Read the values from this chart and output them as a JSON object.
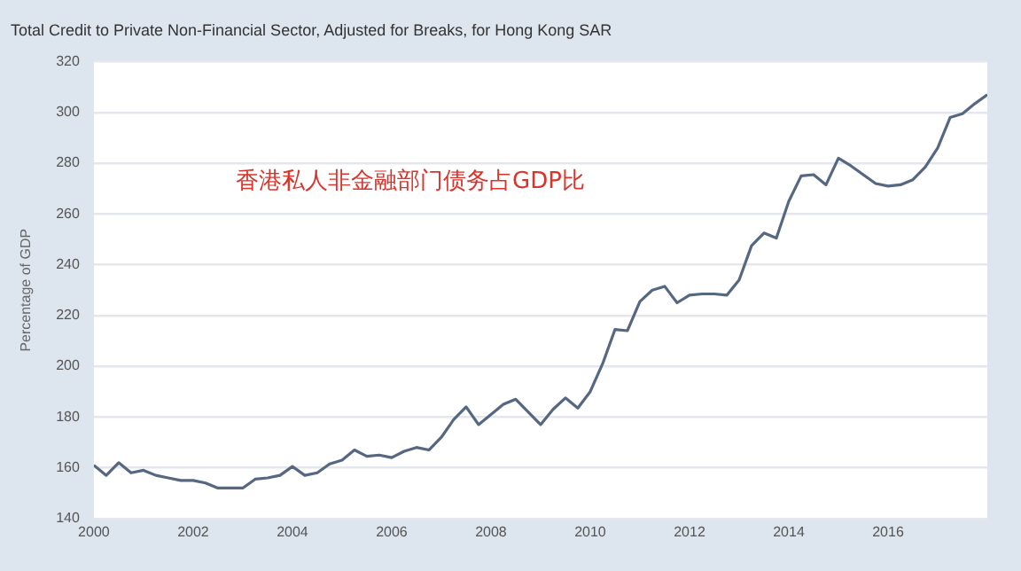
{
  "chart_data": {
    "type": "line",
    "title": "Total Credit to Private Non-Financial Sector, Adjusted for Breaks, for Hong Kong SAR",
    "ylabel": "Percentage of GDP",
    "annotations": [
      "香港私人非金融部门债务占GDP比"
    ],
    "x": [
      "2000-01",
      "2000-04",
      "2000-07",
      "2000-10",
      "2001-01",
      "2001-04",
      "2001-07",
      "2001-10",
      "2002-01",
      "2002-04",
      "2002-07",
      "2002-10",
      "2003-01",
      "2003-04",
      "2003-07",
      "2003-10",
      "2004-01",
      "2004-04",
      "2004-07",
      "2004-10",
      "2005-01",
      "2005-04",
      "2005-07",
      "2005-10",
      "2006-01",
      "2006-04",
      "2006-07",
      "2006-10",
      "2007-01",
      "2007-04",
      "2007-07",
      "2007-10",
      "2008-01",
      "2008-04",
      "2008-07",
      "2008-10",
      "2009-01",
      "2009-04",
      "2009-07",
      "2009-10",
      "2010-01",
      "2010-04",
      "2010-07",
      "2010-10",
      "2011-01",
      "2011-04",
      "2011-07",
      "2011-10",
      "2012-01",
      "2012-04",
      "2012-07",
      "2012-10",
      "2013-01",
      "2013-04",
      "2013-07",
      "2013-10",
      "2014-01",
      "2014-04",
      "2014-07",
      "2014-10",
      "2015-01",
      "2015-04",
      "2015-07",
      "2015-10",
      "2016-01",
      "2016-04",
      "2016-07",
      "2016-10",
      "2017-01",
      "2017-04",
      "2017-07",
      "2017-10",
      "2018-01"
    ],
    "series": [
      {
        "color": "#566781",
        "values": [
          161,
          157,
          162,
          158,
          159,
          157,
          156,
          155,
          155,
          154,
          152,
          152,
          152,
          155.5,
          156,
          157,
          160.5,
          157,
          158,
          161.5,
          163,
          167,
          164.5,
          165,
          164,
          166.5,
          168,
          167,
          172,
          179,
          184,
          177,
          181,
          185,
          187,
          182,
          177,
          183,
          187.5,
          183.5,
          190,
          201,
          214.5,
          214,
          225.5,
          230,
          231.5,
          225,
          228,
          228.5,
          228.5,
          228,
          234,
          247.5,
          252.5,
          250.5,
          265,
          275,
          275.5,
          271.5,
          282,
          279,
          275.5,
          272,
          271,
          271.5,
          273.5,
          278.5,
          286,
          298,
          299.5,
          303.5,
          307
        ]
      }
    ],
    "xlim": [
      "2000",
      "2018"
    ],
    "xticks": [
      "2000",
      "2002",
      "2004",
      "2006",
      "2008",
      "2010",
      "2012",
      "2014",
      "2016"
    ],
    "ylim": [
      140,
      320
    ],
    "yticks": [
      140,
      160,
      180,
      200,
      220,
      240,
      260,
      280,
      300,
      320
    ],
    "grid": "y",
    "legend": false,
    "marker": "none",
    "line_style": "solid"
  }
}
